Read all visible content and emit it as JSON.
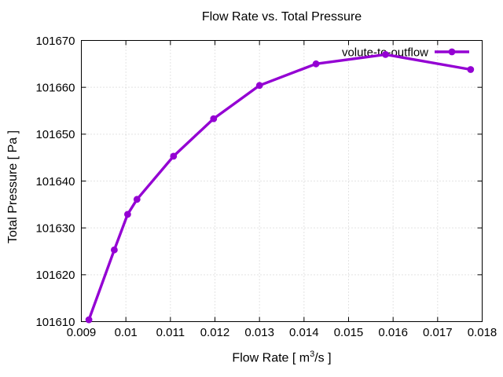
{
  "chart_data": {
    "type": "line",
    "title": "Flow Rate vs. Total Pressure",
    "xlabel": "Flow Rate [ m³/s ]",
    "xlabel_parts": {
      "prefix": "Flow Rate [ m",
      "superscript": "3",
      "suffix": "/s ]"
    },
    "ylabel": "Total Pressure [ Pa ]",
    "xlim": [
      0.009,
      0.018
    ],
    "ylim": [
      101610,
      101670
    ],
    "xticks": {
      "values": [
        0.009,
        0.01,
        0.011,
        0.012,
        0.013,
        0.014,
        0.015,
        0.016,
        0.017,
        0.018
      ],
      "labels": [
        "0.009",
        "0.01",
        "0.011",
        "0.012",
        "0.013",
        "0.014",
        "0.015",
        "0.016",
        "0.017",
        "0.018"
      ]
    },
    "yticks": {
      "values": [
        101610,
        101620,
        101630,
        101640,
        101650,
        101660,
        101670
      ],
      "labels": [
        "101610",
        "101620",
        "101630",
        "101640",
        "101650",
        "101660",
        "101670"
      ]
    },
    "grid": true,
    "grid_style": "dotted",
    "grid_color": "#c8c8c8",
    "axis_color": "#000000",
    "background": "#ffffff",
    "legend": {
      "position": "top-right",
      "entries": [
        "volute-to-outflow"
      ]
    },
    "series": [
      {
        "name": "volute-to-outflow",
        "color": "#9400d3",
        "marker": "filled-circle",
        "points": [
          [
            0.00917,
            101610.4
          ],
          [
            0.00974,
            101625.3
          ],
          [
            0.01004,
            101632.9
          ],
          [
            0.01025,
            101636.1
          ],
          [
            0.01107,
            101645.3
          ],
          [
            0.01197,
            101653.3
          ],
          [
            0.013,
            101660.4
          ],
          [
            0.01427,
            101665.0
          ],
          [
            0.01583,
            101667.0
          ],
          [
            0.01774,
            101663.8
          ]
        ]
      }
    ]
  }
}
